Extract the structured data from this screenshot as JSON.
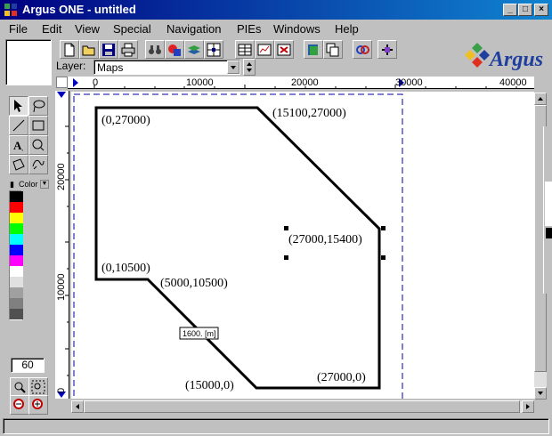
{
  "window": {
    "title": "Argus ONE - untitled"
  },
  "menu": [
    "File",
    "Edit",
    "View",
    "Special",
    "Navigation",
    "PIEs",
    "Windows",
    "Help"
  ],
  "toolbar": {
    "layer_label": "Layer:",
    "layer_value": "Maps",
    "buttons": [
      "new-file",
      "open-file",
      "save-file",
      "print",
      "find",
      "objects",
      "layers",
      "grid",
      "table",
      "chart",
      "delete",
      "book",
      "copy",
      "link",
      "tool"
    ]
  },
  "logo": {
    "text": "Argus"
  },
  "palette": {
    "color_label": "Color",
    "colors": [
      "#000000",
      "#ff0000",
      "#ffff00",
      "#00ff00",
      "#00ffff",
      "#0000ff",
      "#ff00ff",
      "#ffffff",
      "#e0e0e0",
      "#a0a0a0",
      "#808080",
      "#505050"
    ],
    "zoom_value": "60"
  },
  "ruler": {
    "x_ticks": [
      "0",
      "10000",
      "20000",
      "30000",
      "40000"
    ],
    "y_ticks": [
      "20000",
      "10000",
      "0"
    ]
  },
  "drawing": {
    "vertex_labels": [
      "(0,27000)",
      "(15100,27000)",
      "(27000,15400)",
      "(0,10500)",
      "(5000,10500)",
      "(15000,0)",
      "(27000,0)"
    ],
    "measure_label": "1600. [m]"
  },
  "colors": {
    "title_start": "#000080",
    "title_end": "#1084d0",
    "guide": "#0000a0"
  }
}
